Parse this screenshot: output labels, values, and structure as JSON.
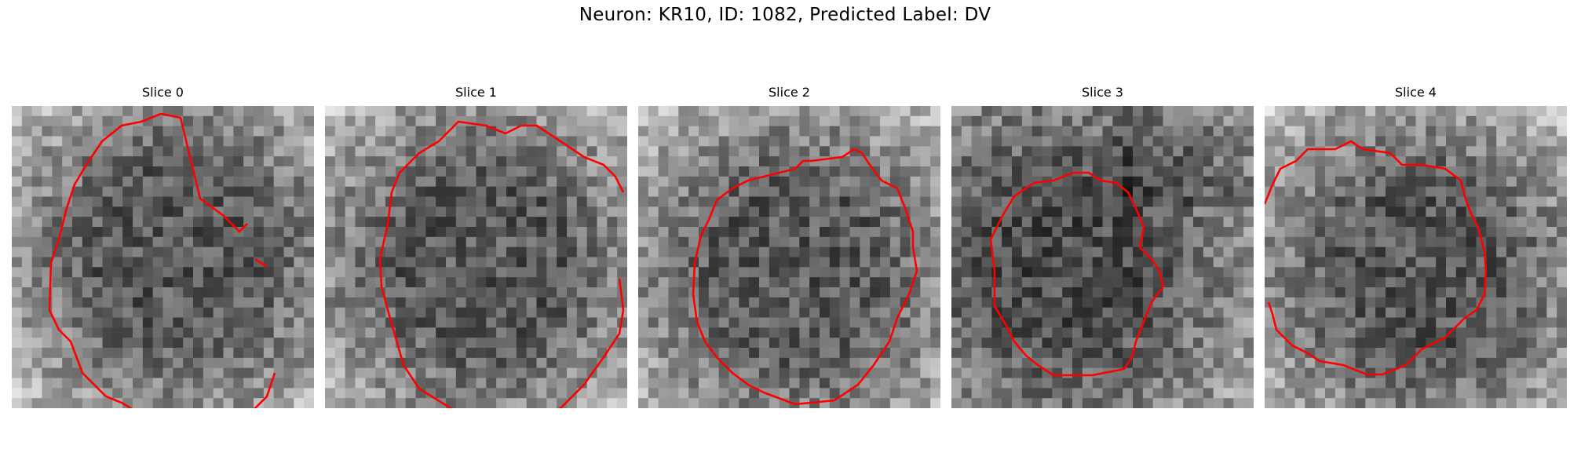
{
  "figure": {
    "title": "Neuron: KR10, ID: 1082, Predicted Label: DV"
  },
  "panels": [
    {
      "title": "Slice 0",
      "contour_color": "#ff0000"
    },
    {
      "title": "Slice 1",
      "contour_color": "#ff0000"
    },
    {
      "title": "Slice 2",
      "contour_color": "#ff0000"
    },
    {
      "title": "Slice 3",
      "contour_color": "#ff0000"
    },
    {
      "title": "Slice 4",
      "contour_color": "#ff0000"
    }
  ]
}
